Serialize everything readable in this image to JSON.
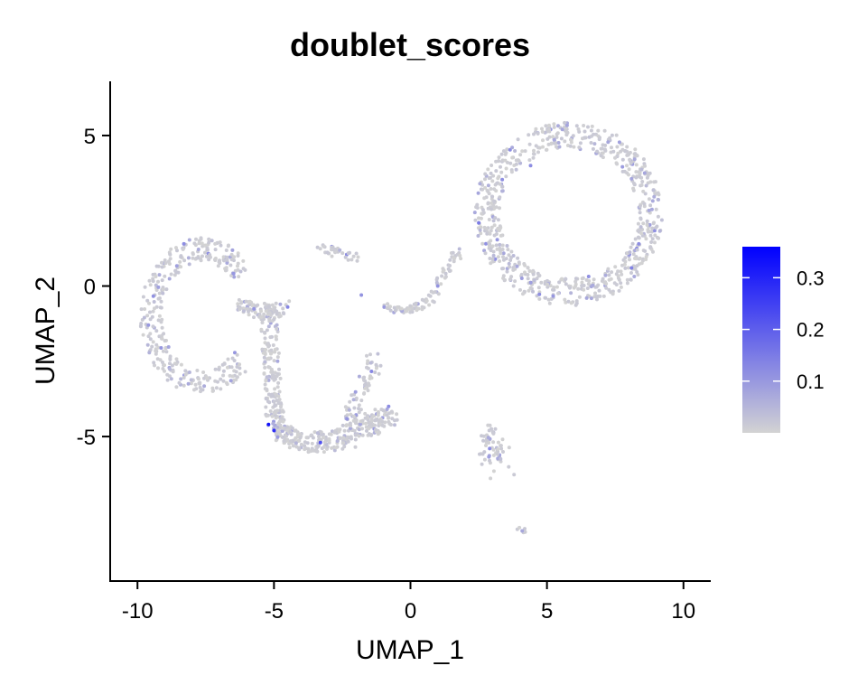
{
  "chart_data": {
    "type": "scatter",
    "title": "doublet_scores",
    "xlabel": "UMAP_1",
    "ylabel": "UMAP_2",
    "xlim": [
      -11,
      11
    ],
    "ylim": [
      -9.8,
      6.8
    ],
    "x_ticks": [
      -10,
      -5,
      0,
      5,
      10
    ],
    "x_tick_labels": [
      "-10",
      "-5",
      "0",
      "5",
      "10"
    ],
    "y_ticks": [
      -5,
      0,
      5
    ],
    "y_tick_labels": [
      "-5",
      "0",
      "5"
    ],
    "grid": false,
    "legend_position": "right",
    "colorbar": {
      "range": [
        0,
        0.36
      ],
      "ticks": [
        0.1,
        0.2,
        0.3
      ],
      "tick_labels": [
        "0.1",
        "0.2",
        "0.3"
      ],
      "low_color": "#d3d3d3",
      "high_color": "#0000ff"
    },
    "highlighted_points": [
      {
        "x": -5.2,
        "y": -4.6,
        "score": 0.33
      },
      {
        "x": -5.0,
        "y": -4.8,
        "score": 0.28
      },
      {
        "x": -3.3,
        "y": -5.2,
        "score": 0.22
      },
      {
        "x": 2.5,
        "y": 2.1,
        "score": 0.15
      },
      {
        "x": 4.4,
        "y": 4.0,
        "score": 0.12
      },
      {
        "x": 8.1,
        "y": 0.6,
        "score": 0.14
      },
      {
        "x": -8.3,
        "y": 1.4,
        "score": 0.12
      },
      {
        "x": -4.5,
        "y": -0.7,
        "score": 0.13
      },
      {
        "x": 2.9,
        "y": -5.4,
        "score": 0.12
      },
      {
        "x": -1.8,
        "y": -0.3,
        "score": 0.11
      },
      {
        "x": 1.0,
        "y": 0.0,
        "score": 0.11
      },
      {
        "x": -9.6,
        "y": -1.3,
        "score": 0.1
      },
      {
        "x": -0.8,
        "y": -4.0,
        "score": 0.12
      }
    ],
    "clusters": [
      {
        "shape": "ring",
        "cx": 5.8,
        "cy": 2.4,
        "rx": 3.0,
        "ry": 2.6,
        "thickness": 0.9,
        "n": 700
      },
      {
        "shape": "arc",
        "cx": -7.6,
        "cy": -1.0,
        "rx": 1.9,
        "ry": 2.2,
        "a0": 40,
        "a1": 320,
        "thickness": 0.8,
        "n": 330
      },
      {
        "shape": "band",
        "points": [
          [
            -6.3,
            -0.6
          ],
          [
            -5.4,
            -0.9
          ],
          [
            -4.6,
            -0.7
          ]
        ],
        "width": 0.5,
        "n": 90
      },
      {
        "shape": "band",
        "points": [
          [
            -5.2,
            -0.8
          ],
          [
            -5.1,
            -2.5
          ],
          [
            -5.0,
            -4.2
          ],
          [
            -4.6,
            -5.0
          ]
        ],
        "width": 0.6,
        "n": 200
      },
      {
        "shape": "band",
        "points": [
          [
            -4.6,
            -5.0
          ],
          [
            -3.5,
            -5.2
          ],
          [
            -2.5,
            -5.1
          ],
          [
            -1.5,
            -4.6
          ],
          [
            -0.7,
            -4.2
          ]
        ],
        "width": 0.7,
        "n": 260
      },
      {
        "shape": "band",
        "points": [
          [
            -2.3,
            -4.7
          ],
          [
            -1.8,
            -3.5
          ],
          [
            -1.3,
            -2.5
          ]
        ],
        "width": 0.6,
        "n": 70
      },
      {
        "shape": "band",
        "points": [
          [
            -3.3,
            1.3
          ],
          [
            -2.7,
            1.1
          ],
          [
            -1.8,
            0.9
          ]
        ],
        "width": 0.3,
        "n": 35
      },
      {
        "shape": "band",
        "points": [
          [
            -1.1,
            -0.6
          ],
          [
            -0.2,
            -0.8
          ],
          [
            0.6,
            -0.6
          ],
          [
            1.2,
            0.3
          ],
          [
            1.8,
            1.2
          ]
        ],
        "width": 0.3,
        "n": 90
      },
      {
        "shape": "band",
        "points": [
          [
            2.9,
            -4.6
          ],
          [
            2.9,
            -5.2
          ]
        ],
        "width": 0.3,
        "n": 15
      },
      {
        "shape": "blob",
        "cx": 3.0,
        "cy": -5.5,
        "rx": 0.35,
        "ry": 0.3,
        "n": 45
      },
      {
        "shape": "blob",
        "cx": 4.1,
        "cy": -8.1,
        "rx": 0.08,
        "ry": 0.06,
        "n": 6
      }
    ]
  }
}
